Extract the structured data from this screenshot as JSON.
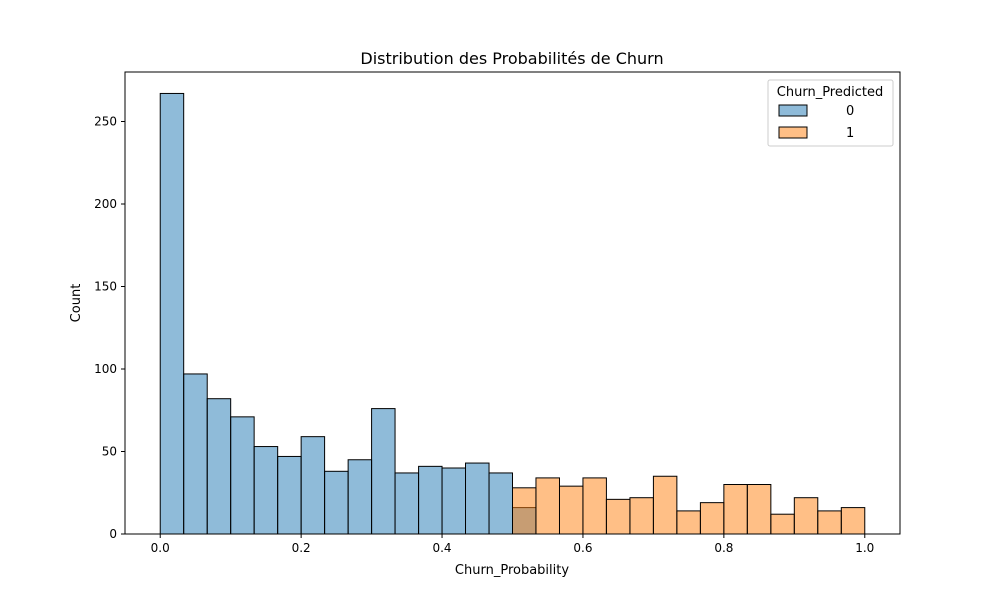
{
  "chart_data": {
    "type": "bar",
    "title": "Distribution des Probabilités de Churn",
    "xlabel": "Churn_Probability",
    "ylabel": "Count",
    "xlim": [
      -0.05,
      1.05
    ],
    "ylim": [
      0,
      280
    ],
    "xticks": [
      "0.0",
      "0.2",
      "0.4",
      "0.6",
      "0.8",
      "1.0"
    ],
    "yticks": [
      "0",
      "50",
      "100",
      "150",
      "200",
      "250"
    ],
    "grid": false,
    "legend": {
      "title": "Churn_Predicted",
      "placement": "top-right"
    },
    "bin_edges": [
      0.0,
      0.0333,
      0.0667,
      0.1,
      0.1333,
      0.1667,
      0.2,
      0.2333,
      0.2667,
      0.3,
      0.3333,
      0.3667,
      0.4,
      0.4333,
      0.4667,
      0.5,
      0.5333,
      0.5667,
      0.6,
      0.6333,
      0.6667,
      0.7,
      0.7333,
      0.7667,
      0.8,
      0.8333,
      0.8667,
      0.9,
      0.9333,
      0.9667,
      1.0
    ],
    "series": [
      {
        "name": "0",
        "color": "#1f77b4",
        "values": [
          267,
          97,
          82,
          71,
          53,
          47,
          59,
          38,
          45,
          76,
          37,
          41,
          40,
          43,
          37,
          16,
          0,
          0,
          0,
          0,
          0,
          0,
          0,
          0,
          0,
          0,
          0,
          0,
          0,
          0
        ]
      },
      {
        "name": "1",
        "color": "#ff7f0e",
        "values": [
          0,
          0,
          0,
          0,
          0,
          0,
          0,
          0,
          0,
          0,
          0,
          0,
          0,
          0,
          0,
          28,
          34,
          29,
          34,
          21,
          22,
          35,
          14,
          19,
          30,
          30,
          12,
          22,
          14,
          16
        ]
      }
    ]
  }
}
